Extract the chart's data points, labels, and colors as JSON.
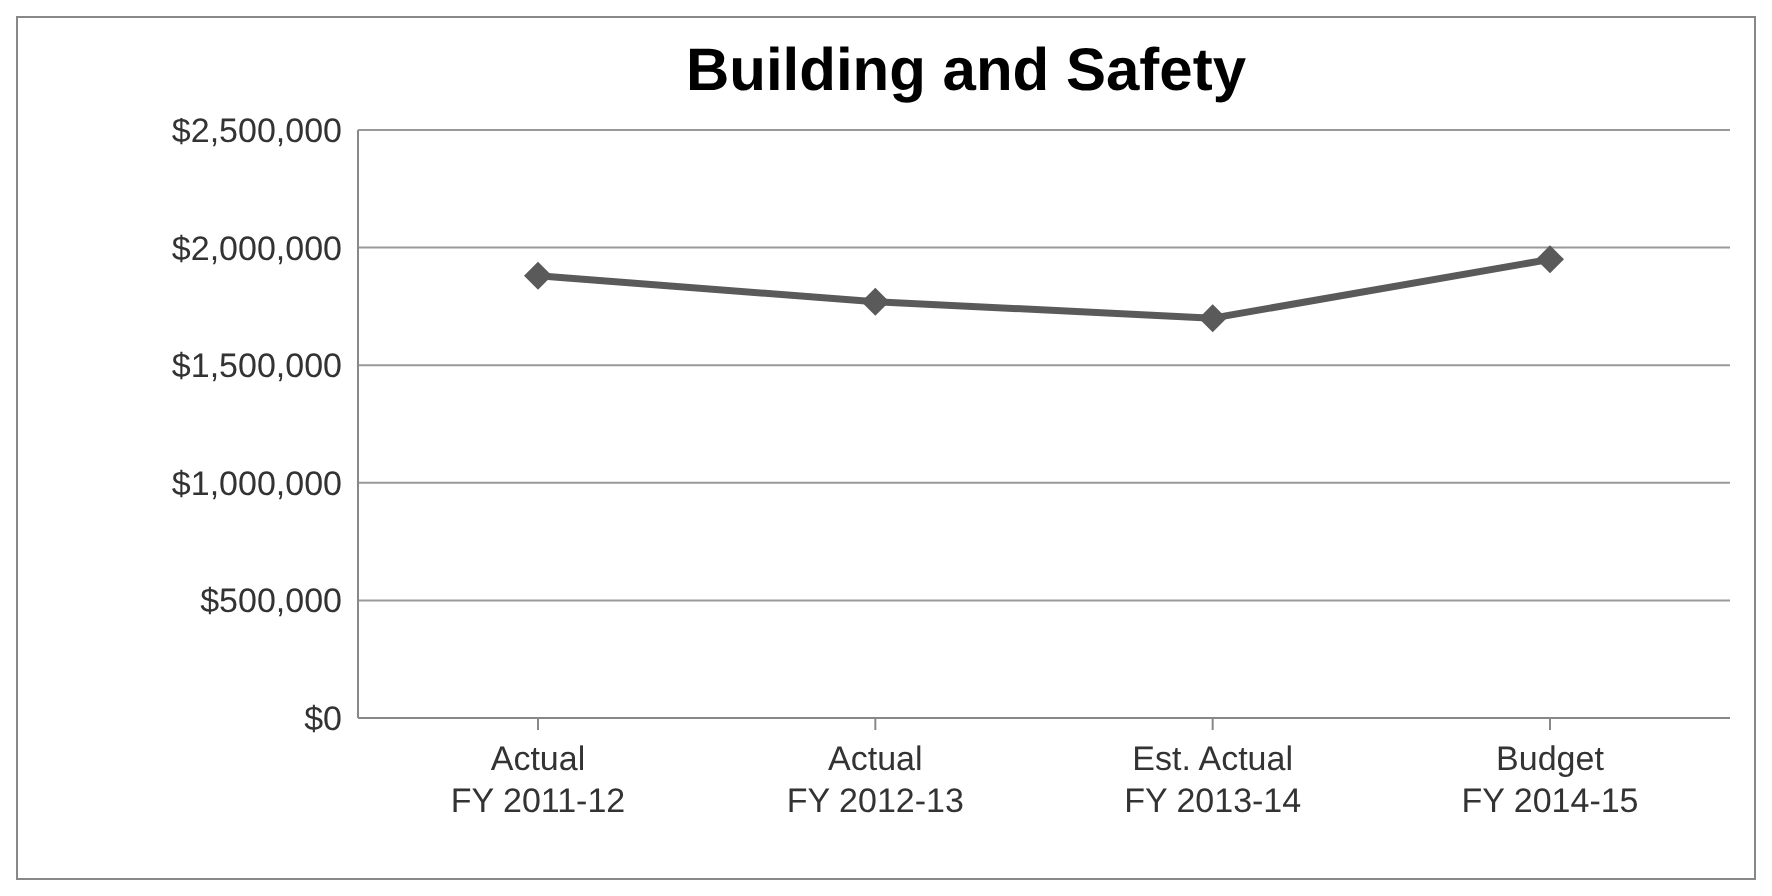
{
  "chart_data": {
    "type": "line",
    "title": "Building and Safety",
    "categories": [
      "Actual\nFY 2011-12",
      "Actual\nFY 2012-13",
      "Est. Actual\nFY 2013-14",
      "Budget\nFY 2014-15"
    ],
    "series": [
      {
        "color": "#5a5a5a",
        "values": [
          1880000,
          1770000,
          1700000,
          1950000
        ]
      }
    ],
    "ylim": [
      0,
      2500000
    ],
    "yticks": [
      {
        "value": 0,
        "label": "$0"
      },
      {
        "value": 500000,
        "label": "$500,000"
      },
      {
        "value": 1000000,
        "label": "$1,000,000"
      },
      {
        "value": 1500000,
        "label": "$1,500,000"
      },
      {
        "value": 2000000,
        "label": "$2,000,000"
      },
      {
        "value": 2500000,
        "label": "$2,500,000"
      }
    ],
    "grid": "y",
    "legend": false,
    "marker": "diamond",
    "line_style": "solid"
  }
}
